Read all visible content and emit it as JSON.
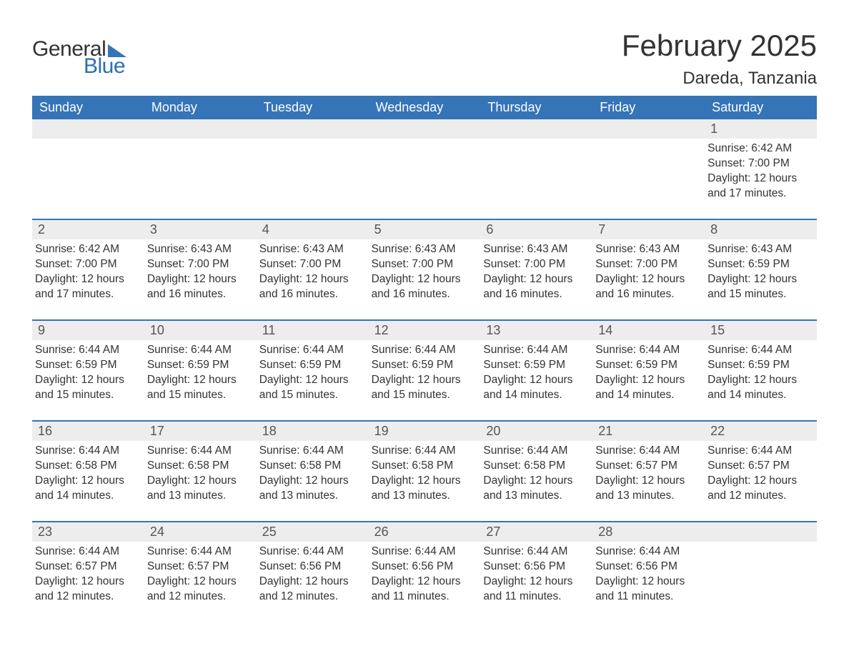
{
  "logo": {
    "word1": "General",
    "word2": "Blue",
    "text_color": "#333333",
    "accent_color": "#2a6fb5",
    "triangle_color": "#3574b7"
  },
  "title": {
    "month": "February 2025",
    "location": "Dareda, Tanzania",
    "fontsize_month": 42,
    "fontsize_location": 24,
    "color": "#333333"
  },
  "colors": {
    "header_bg": "#3574b7",
    "header_text": "#ffffff",
    "daynum_bg": "#ededed",
    "daynum_text": "#555555",
    "body_text": "#333333",
    "row_border": "#3574b7",
    "page_bg": "#ffffff"
  },
  "day_headers": [
    "Sunday",
    "Monday",
    "Tuesday",
    "Wednesday",
    "Thursday",
    "Friday",
    "Saturday"
  ],
  "weeks": [
    [
      null,
      null,
      null,
      null,
      null,
      null,
      {
        "n": "1",
        "sunrise": "Sunrise: 6:42 AM",
        "sunset": "Sunset: 7:00 PM",
        "daylight1": "Daylight: 12 hours",
        "daylight2": "and 17 minutes."
      }
    ],
    [
      {
        "n": "2",
        "sunrise": "Sunrise: 6:42 AM",
        "sunset": "Sunset: 7:00 PM",
        "daylight1": "Daylight: 12 hours",
        "daylight2": "and 17 minutes."
      },
      {
        "n": "3",
        "sunrise": "Sunrise: 6:43 AM",
        "sunset": "Sunset: 7:00 PM",
        "daylight1": "Daylight: 12 hours",
        "daylight2": "and 16 minutes."
      },
      {
        "n": "4",
        "sunrise": "Sunrise: 6:43 AM",
        "sunset": "Sunset: 7:00 PM",
        "daylight1": "Daylight: 12 hours",
        "daylight2": "and 16 minutes."
      },
      {
        "n": "5",
        "sunrise": "Sunrise: 6:43 AM",
        "sunset": "Sunset: 7:00 PM",
        "daylight1": "Daylight: 12 hours",
        "daylight2": "and 16 minutes."
      },
      {
        "n": "6",
        "sunrise": "Sunrise: 6:43 AM",
        "sunset": "Sunset: 7:00 PM",
        "daylight1": "Daylight: 12 hours",
        "daylight2": "and 16 minutes."
      },
      {
        "n": "7",
        "sunrise": "Sunrise: 6:43 AM",
        "sunset": "Sunset: 7:00 PM",
        "daylight1": "Daylight: 12 hours",
        "daylight2": "and 16 minutes."
      },
      {
        "n": "8",
        "sunrise": "Sunrise: 6:43 AM",
        "sunset": "Sunset: 6:59 PM",
        "daylight1": "Daylight: 12 hours",
        "daylight2": "and 15 minutes."
      }
    ],
    [
      {
        "n": "9",
        "sunrise": "Sunrise: 6:44 AM",
        "sunset": "Sunset: 6:59 PM",
        "daylight1": "Daylight: 12 hours",
        "daylight2": "and 15 minutes."
      },
      {
        "n": "10",
        "sunrise": "Sunrise: 6:44 AM",
        "sunset": "Sunset: 6:59 PM",
        "daylight1": "Daylight: 12 hours",
        "daylight2": "and 15 minutes."
      },
      {
        "n": "11",
        "sunrise": "Sunrise: 6:44 AM",
        "sunset": "Sunset: 6:59 PM",
        "daylight1": "Daylight: 12 hours",
        "daylight2": "and 15 minutes."
      },
      {
        "n": "12",
        "sunrise": "Sunrise: 6:44 AM",
        "sunset": "Sunset: 6:59 PM",
        "daylight1": "Daylight: 12 hours",
        "daylight2": "and 15 minutes."
      },
      {
        "n": "13",
        "sunrise": "Sunrise: 6:44 AM",
        "sunset": "Sunset: 6:59 PM",
        "daylight1": "Daylight: 12 hours",
        "daylight2": "and 14 minutes."
      },
      {
        "n": "14",
        "sunrise": "Sunrise: 6:44 AM",
        "sunset": "Sunset: 6:59 PM",
        "daylight1": "Daylight: 12 hours",
        "daylight2": "and 14 minutes."
      },
      {
        "n": "15",
        "sunrise": "Sunrise: 6:44 AM",
        "sunset": "Sunset: 6:59 PM",
        "daylight1": "Daylight: 12 hours",
        "daylight2": "and 14 minutes."
      }
    ],
    [
      {
        "n": "16",
        "sunrise": "Sunrise: 6:44 AM",
        "sunset": "Sunset: 6:58 PM",
        "daylight1": "Daylight: 12 hours",
        "daylight2": "and 14 minutes."
      },
      {
        "n": "17",
        "sunrise": "Sunrise: 6:44 AM",
        "sunset": "Sunset: 6:58 PM",
        "daylight1": "Daylight: 12 hours",
        "daylight2": "and 13 minutes."
      },
      {
        "n": "18",
        "sunrise": "Sunrise: 6:44 AM",
        "sunset": "Sunset: 6:58 PM",
        "daylight1": "Daylight: 12 hours",
        "daylight2": "and 13 minutes."
      },
      {
        "n": "19",
        "sunrise": "Sunrise: 6:44 AM",
        "sunset": "Sunset: 6:58 PM",
        "daylight1": "Daylight: 12 hours",
        "daylight2": "and 13 minutes."
      },
      {
        "n": "20",
        "sunrise": "Sunrise: 6:44 AM",
        "sunset": "Sunset: 6:58 PM",
        "daylight1": "Daylight: 12 hours",
        "daylight2": "and 13 minutes."
      },
      {
        "n": "21",
        "sunrise": "Sunrise: 6:44 AM",
        "sunset": "Sunset: 6:57 PM",
        "daylight1": "Daylight: 12 hours",
        "daylight2": "and 13 minutes."
      },
      {
        "n": "22",
        "sunrise": "Sunrise: 6:44 AM",
        "sunset": "Sunset: 6:57 PM",
        "daylight1": "Daylight: 12 hours",
        "daylight2": "and 12 minutes."
      }
    ],
    [
      {
        "n": "23",
        "sunrise": "Sunrise: 6:44 AM",
        "sunset": "Sunset: 6:57 PM",
        "daylight1": "Daylight: 12 hours",
        "daylight2": "and 12 minutes."
      },
      {
        "n": "24",
        "sunrise": "Sunrise: 6:44 AM",
        "sunset": "Sunset: 6:57 PM",
        "daylight1": "Daylight: 12 hours",
        "daylight2": "and 12 minutes."
      },
      {
        "n": "25",
        "sunrise": "Sunrise: 6:44 AM",
        "sunset": "Sunset: 6:56 PM",
        "daylight1": "Daylight: 12 hours",
        "daylight2": "and 12 minutes."
      },
      {
        "n": "26",
        "sunrise": "Sunrise: 6:44 AM",
        "sunset": "Sunset: 6:56 PM",
        "daylight1": "Daylight: 12 hours",
        "daylight2": "and 11 minutes."
      },
      {
        "n": "27",
        "sunrise": "Sunrise: 6:44 AM",
        "sunset": "Sunset: 6:56 PM",
        "daylight1": "Daylight: 12 hours",
        "daylight2": "and 11 minutes."
      },
      {
        "n": "28",
        "sunrise": "Sunrise: 6:44 AM",
        "sunset": "Sunset: 6:56 PM",
        "daylight1": "Daylight: 12 hours",
        "daylight2": "and 11 minutes."
      },
      null
    ]
  ]
}
